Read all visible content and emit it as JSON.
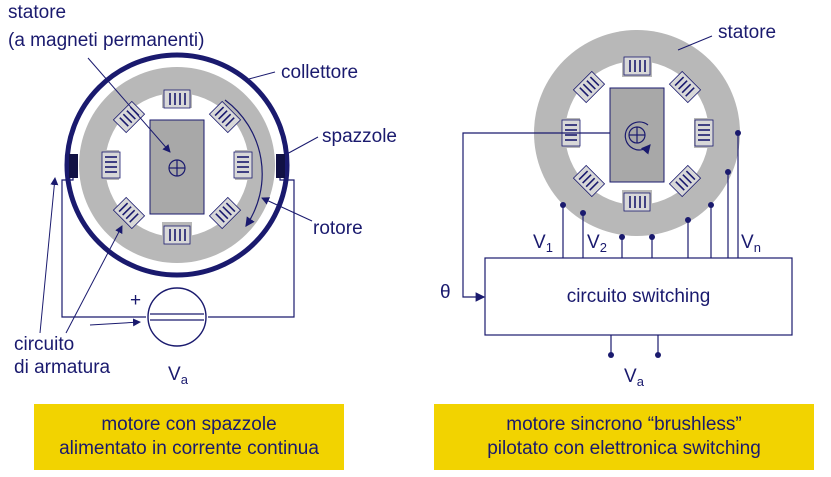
{
  "left": {
    "stator_title": "statore",
    "stator_subtitle": "(a magneti permanenti)",
    "collector": "collettore",
    "brushes": "spazzole",
    "rotor": "rotore",
    "armature_line1": "circuito",
    "armature_line2": "di armatura",
    "plus_sign": "+",
    "va_main": "V",
    "va_sub": "a",
    "caption_line1": "motore con spazzole",
    "caption_line2": "alimentato in corrente continua"
  },
  "right": {
    "stator": "statore",
    "theta": "θ",
    "box_label": "circuito switching",
    "v1_main": "V",
    "v1_sub": "1",
    "v2_main": "V",
    "v2_sub": "2",
    "vn_main": "V",
    "vn_sub": "n",
    "va_main": "V",
    "va_sub": "a",
    "caption_line1": "motore sincrono “brushless”",
    "caption_line2": "pilotato con elettronica switching"
  },
  "colors": {
    "text": "#1a1a6e",
    "stator_gray": "#b8b8b8",
    "rotor_gray": "#a8a8a8",
    "caption_yellow": "#f2d300",
    "coil_blue": "#3a3a80"
  },
  "icons": {
    "rotor_center": "circle-plus-icon",
    "rotation": "rotation-arrow-icon",
    "source": "voltage-source-icon"
  }
}
